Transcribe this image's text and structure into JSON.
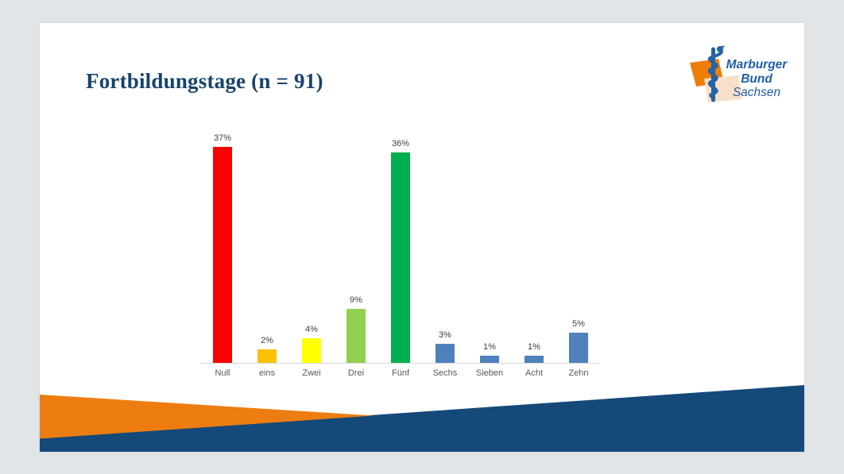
{
  "page": {
    "background": "#e1e5e8"
  },
  "title": {
    "text": "Fortbildungstage (n = 91)",
    "color": "#17436B"
  },
  "logo": {
    "line1": "Marburger",
    "line2": "Bund",
    "line3": "Sachsen",
    "text_color": "#1E5FA6",
    "staff_blue": "#2563A4",
    "orange": "#EF7D0A",
    "peach": "#F8DFCA"
  },
  "chart_data": {
    "type": "bar",
    "title": "Fortbildungstage (n = 91)",
    "categories": [
      "Null",
      "eins",
      "Zwei",
      "Drei",
      "Fünf",
      "Sechs",
      "Sieben",
      "Acht",
      "Zehn"
    ],
    "values": [
      37,
      2,
      4,
      9,
      36,
      3,
      1,
      1,
      5
    ],
    "data_labels": [
      "37%",
      "2%",
      "4%",
      "9%",
      "36%",
      "3%",
      "1%",
      "1%",
      "5%"
    ],
    "bar_colors": [
      "#FE0000",
      "#FFC000",
      "#FFFF00",
      "#92D050",
      "#00B050",
      "#4F81BD",
      "#4F81BD",
      "#4F81BD",
      "#4F81BD"
    ],
    "xlabel": "",
    "ylabel": "",
    "ylim": [
      0,
      40
    ],
    "unit": "%",
    "gridlines": false,
    "legend": false,
    "y_axis_visible": false,
    "axis_line_color": "#D8D8D8",
    "data_label_color": "#404040",
    "category_label_color": "#595959"
  },
  "footer": {
    "orange": "#ED7D11",
    "navy": "#15497A"
  }
}
